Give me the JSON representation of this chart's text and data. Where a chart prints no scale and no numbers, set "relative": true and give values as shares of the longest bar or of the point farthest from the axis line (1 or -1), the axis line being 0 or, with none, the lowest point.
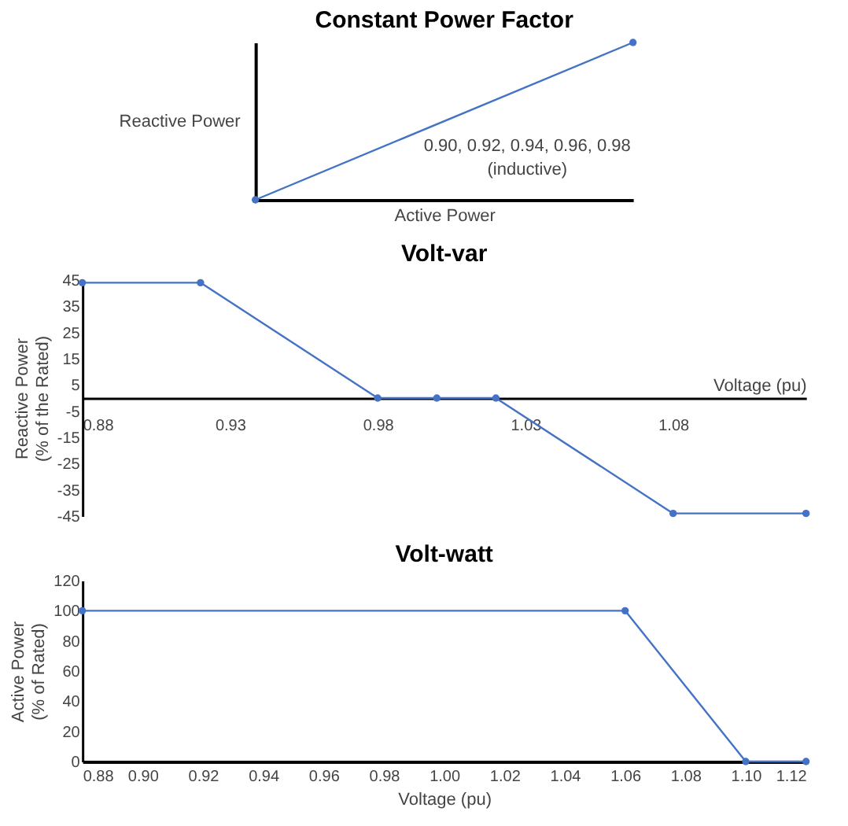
{
  "chart_data": [
    {
      "type": "line",
      "title": "Constant Power Factor",
      "xlabel": "Active Power",
      "ylabel": "Reactive Power",
      "relative": true,
      "categories": [
        null,
        null
      ],
      "marker": "circle",
      "grid": false,
      "legend": false,
      "series": [
        {
          "color": "#4472c4",
          "values": [
            0,
            1
          ]
        }
      ],
      "annotations": [
        "0.90, 0.92, 0.94, 0.96, 0.98",
        "(inductive)"
      ]
    },
    {
      "type": "line",
      "title": "Volt-var",
      "xlabel": "Voltage (pu)",
      "ylabel": "Reactive Power (% of the Rated)",
      "marker": "circle",
      "grid": false,
      "legend": false,
      "x": [
        0.88,
        0.92,
        0.98,
        1.0,
        1.02,
        1.08,
        1.125
      ],
      "xlim": [
        0.88,
        1.125
      ],
      "xticks": [
        0.88,
        0.93,
        0.98,
        1.03,
        1.08
      ],
      "ylim": [
        -45,
        45
      ],
      "yticks": [
        45,
        35,
        25,
        15,
        5,
        -5,
        -15,
        -25,
        -35,
        -45
      ],
      "series": [
        {
          "color": "#4472c4",
          "values": [
            44,
            44,
            0,
            0,
            0,
            -44,
            -44
          ]
        }
      ]
    },
    {
      "type": "line",
      "title": "Volt-watt",
      "xlabel": "Voltage (pu)",
      "ylabel": "Active Power (% of Rated)",
      "marker": "circle",
      "grid": false,
      "legend": false,
      "x": [
        0.88,
        1.06,
        1.1,
        1.12
      ],
      "xlim": [
        0.88,
        1.12
      ],
      "xticks": [
        0.88,
        {
          "value": 0.9,
          "label": "0.90"
        },
        0.92,
        0.94,
        0.96,
        0.98,
        {
          "value": 1.0,
          "label": "1.00"
        },
        1.02,
        1.04,
        1.06,
        1.08,
        {
          "value": 1.1,
          "label": "1.10"
        },
        1.12
      ],
      "ylim": [
        0,
        120
      ],
      "yticks": [
        0,
        20,
        40,
        60,
        80,
        100,
        120
      ],
      "series": [
        {
          "color": "#4472c4",
          "values": [
            100,
            100,
            0,
            0
          ]
        }
      ]
    }
  ]
}
